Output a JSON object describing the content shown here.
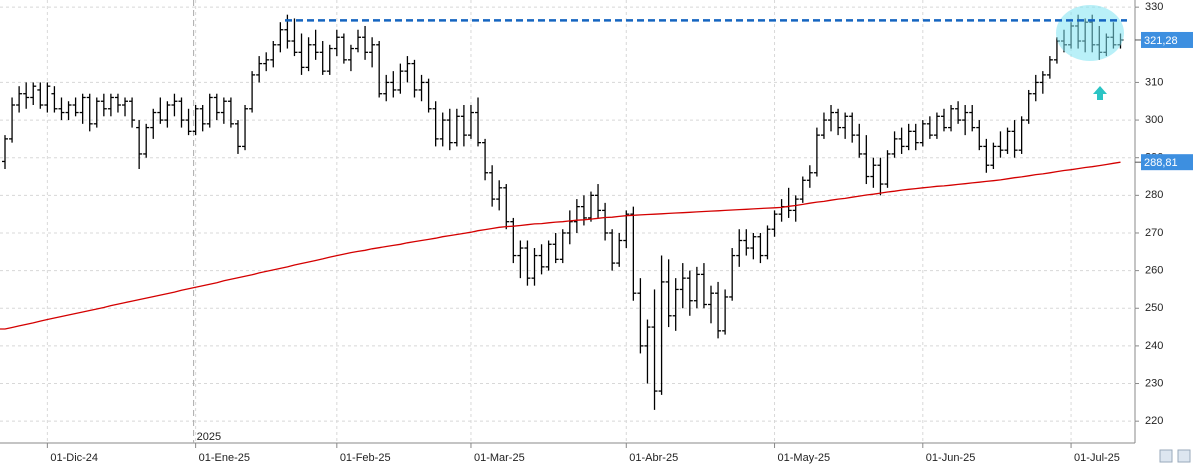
{
  "chart_data": {
    "type": "ohlc",
    "year_label": "2025",
    "ylim": [
      214.2,
      331.9
    ],
    "yticks": [
      220,
      230,
      240,
      250,
      260,
      270,
      280,
      290,
      300,
      310,
      330
    ],
    "grid": true,
    "bar_color": "#000000",
    "ma_color": "#d40000",
    "resistance": 326.5,
    "resistance_color": "#1565c0",
    "price_tag": {
      "value": 321.28,
      "label": "321,28"
    },
    "ma_tag": {
      "value": 288.81,
      "label": "288,81"
    },
    "tag_color": "#3d8fe0",
    "categories": [
      null,
      null,
      null,
      null,
      null,
      null,
      "01-Dic-24",
      null,
      null,
      null,
      null,
      null,
      null,
      null,
      null,
      null,
      null,
      null,
      null,
      null,
      null,
      null,
      null,
      null,
      null,
      null,
      null,
      "01-Ene-25",
      null,
      null,
      null,
      null,
      null,
      null,
      null,
      null,
      null,
      null,
      null,
      null,
      null,
      null,
      null,
      null,
      null,
      null,
      null,
      "01-Feb-25",
      null,
      null,
      null,
      null,
      null,
      null,
      null,
      null,
      null,
      null,
      null,
      null,
      null,
      null,
      null,
      null,
      null,
      null,
      "01-Mar-25",
      null,
      null,
      null,
      null,
      null,
      null,
      null,
      null,
      null,
      null,
      null,
      null,
      null,
      null,
      null,
      null,
      null,
      null,
      null,
      null,
      null,
      "01-Abr-25",
      null,
      null,
      null,
      null,
      null,
      null,
      null,
      null,
      null,
      null,
      null,
      null,
      null,
      null,
      null,
      null,
      null,
      null,
      null,
      null,
      "01-May-25",
      null,
      null,
      null,
      null,
      null,
      null,
      null,
      null,
      null,
      null,
      null,
      null,
      null,
      null,
      null,
      null,
      null,
      null,
      null,
      null,
      "01-Jun-25",
      null,
      null,
      null,
      null,
      null,
      null,
      null,
      null,
      null,
      null,
      null,
      null,
      null,
      null,
      null,
      null,
      null,
      null,
      null,
      null,
      "01-Jul-25",
      null,
      null,
      null,
      null,
      null,
      null,
      null
    ],
    "ohlc": [
      [
        289,
        296,
        287,
        295
      ],
      [
        295,
        306,
        294,
        304
      ],
      [
        304,
        309,
        302,
        307
      ],
      [
        307,
        310,
        303,
        306
      ],
      [
        306,
        310,
        304,
        309
      ],
      [
        308,
        310,
        303,
        304
      ],
      [
        304,
        310,
        302,
        309
      ],
      [
        307,
        309,
        302,
        303
      ],
      [
        303,
        306,
        300,
        302
      ],
      [
        302,
        305,
        300,
        304
      ],
      [
        304,
        306,
        301,
        302
      ],
      [
        302,
        307,
        299,
        306
      ],
      [
        306,
        307,
        297,
        299
      ],
      [
        299,
        306,
        298,
        305
      ],
      [
        305,
        307,
        301,
        303
      ],
      [
        303,
        307,
        301,
        306
      ],
      [
        306,
        307,
        302,
        304
      ],
      [
        304,
        306,
        301,
        305
      ],
      [
        305,
        306,
        298,
        300
      ],
      [
        298,
        300,
        287,
        291
      ],
      [
        291,
        299,
        290,
        298
      ],
      [
        298,
        303,
        295,
        302
      ],
      [
        302,
        306,
        299,
        300
      ],
      [
        300,
        305,
        298,
        304
      ],
      [
        304,
        307,
        301,
        305
      ],
      [
        305,
        306,
        298,
        300
      ],
      [
        300,
        303,
        296,
        297
      ],
      [
        297,
        304,
        296,
        303
      ],
      [
        303,
        304,
        297,
        299
      ],
      [
        299,
        307,
        298,
        306
      ],
      [
        306,
        307,
        300,
        302
      ],
      [
        302,
        306,
        299,
        305
      ],
      [
        305,
        306,
        298,
        299
      ],
      [
        299,
        300,
        291,
        293
      ],
      [
        293,
        304,
        292,
        303
      ],
      [
        303,
        313,
        302,
        312
      ],
      [
        312,
        317,
        310,
        315
      ],
      [
        315,
        318,
        313,
        316
      ],
      [
        316,
        321,
        314,
        320
      ],
      [
        320,
        326,
        318,
        324
      ],
      [
        324,
        328,
        319,
        321
      ],
      [
        321,
        327,
        317,
        318
      ],
      [
        318,
        323,
        312,
        314
      ],
      [
        314,
        322,
        313,
        320
      ],
      [
        320,
        324,
        316,
        318
      ],
      [
        318,
        321,
        312,
        313
      ],
      [
        313,
        320,
        312,
        319
      ],
      [
        319,
        324,
        317,
        322
      ],
      [
        322,
        323,
        315,
        316
      ],
      [
        316,
        320,
        313,
        319
      ],
      [
        319,
        324,
        318,
        322
      ],
      [
        322,
        325,
        316,
        318
      ],
      [
        318,
        322,
        314,
        320
      ],
      [
        320,
        321,
        306,
        307
      ],
      [
        307,
        312,
        305,
        310
      ],
      [
        310,
        313,
        306,
        308
      ],
      [
        308,
        315,
        307,
        313
      ],
      [
        313,
        317,
        310,
        315
      ],
      [
        315,
        316,
        306,
        308
      ],
      [
        308,
        312,
        305,
        310
      ],
      [
        310,
        311,
        302,
        303
      ],
      [
        303,
        305,
        293,
        295
      ],
      [
        295,
        302,
        293,
        300
      ],
      [
        300,
        303,
        292,
        294
      ],
      [
        294,
        303,
        293,
        301
      ],
      [
        301,
        304,
        293,
        296
      ],
      [
        296,
        304,
        295,
        302
      ],
      [
        302,
        306,
        293,
        294
      ],
      [
        294,
        295,
        284,
        286
      ],
      [
        286,
        288,
        277,
        279
      ],
      [
        279,
        284,
        276,
        282
      ],
      [
        282,
        283,
        271,
        273
      ],
      [
        273,
        274,
        262,
        264
      ],
      [
        264,
        268,
        258,
        266
      ],
      [
        266,
        268,
        256,
        258
      ],
      [
        258,
        266,
        256,
        264
      ],
      [
        264,
        267,
        259,
        261
      ],
      [
        261,
        268,
        260,
        267
      ],
      [
        267,
        270,
        262,
        263
      ],
      [
        263,
        271,
        262,
        270
      ],
      [
        270,
        276,
        267,
        273
      ],
      [
        273,
        279,
        270,
        277
      ],
      [
        277,
        280,
        272,
        274
      ],
      [
        274,
        281,
        273,
        280
      ],
      [
        280,
        283,
        274,
        276
      ],
      [
        276,
        278,
        268,
        270
      ],
      [
        270,
        271,
        260,
        262
      ],
      [
        262,
        270,
        261,
        268
      ],
      [
        268,
        276,
        266,
        275
      ],
      [
        275,
        277,
        252,
        254
      ],
      [
        254,
        258,
        238,
        240
      ],
      [
        240,
        247,
        230,
        245
      ],
      [
        245,
        255,
        223,
        228
      ],
      [
        228,
        264,
        227,
        257
      ],
      [
        257,
        263,
        245,
        248
      ],
      [
        248,
        258,
        244,
        255
      ],
      [
        255,
        262,
        250,
        258
      ],
      [
        258,
        260,
        248,
        252
      ],
      [
        252,
        261,
        250,
        259
      ],
      [
        259,
        262,
        250,
        251
      ],
      [
        251,
        256,
        246,
        254
      ],
      [
        254,
        257,
        242,
        244
      ],
      [
        244,
        255,
        243,
        253
      ],
      [
        253,
        266,
        252,
        264
      ],
      [
        264,
        271,
        261,
        268
      ],
      [
        268,
        271,
        264,
        266
      ],
      [
        266,
        270,
        263,
        269
      ],
      [
        269,
        270,
        262,
        264
      ],
      [
        264,
        272,
        263,
        271
      ],
      [
        271,
        276,
        269,
        275
      ],
      [
        275,
        279,
        273,
        277
      ],
      [
        277,
        282,
        274,
        276
      ],
      [
        276,
        280,
        273,
        279
      ],
      [
        279,
        285,
        278,
        284
      ],
      [
        284,
        288,
        282,
        286
      ],
      [
        286,
        298,
        285,
        296
      ],
      [
        296,
        302,
        295,
        300
      ],
      [
        300,
        304,
        297,
        302
      ],
      [
        302,
        303,
        296,
        298
      ],
      [
        298,
        302,
        295,
        301
      ],
      [
        301,
        302,
        294,
        296
      ],
      [
        296,
        299,
        290,
        291
      ],
      [
        291,
        296,
        283,
        285
      ],
      [
        285,
        290,
        282,
        288
      ],
      [
        288,
        290,
        280,
        283
      ],
      [
        283,
        292,
        282,
        291
      ],
      [
        291,
        297,
        290,
        295
      ],
      [
        295,
        298,
        291,
        293
      ],
      [
        293,
        299,
        292,
        297
      ],
      [
        297,
        299,
        292,
        294
      ],
      [
        294,
        300,
        293,
        299
      ],
      [
        299,
        301,
        295,
        296
      ],
      [
        296,
        302,
        295,
        301
      ],
      [
        301,
        303,
        297,
        298
      ],
      [
        298,
        304,
        297,
        303
      ],
      [
        303,
        305,
        299,
        300
      ],
      [
        300,
        304,
        296,
        302
      ],
      [
        302,
        304,
        297,
        298
      ],
      [
        298,
        300,
        292,
        293
      ],
      [
        293,
        295,
        286,
        288
      ],
      [
        288,
        294,
        287,
        293
      ],
      [
        293,
        297,
        290,
        292
      ],
      [
        292,
        298,
        291,
        297
      ],
      [
        297,
        300,
        290,
        292
      ],
      [
        292,
        301,
        291,
        300
      ],
      [
        300,
        308,
        299,
        307
      ],
      [
        307,
        312,
        305,
        310
      ],
      [
        310,
        313,
        307,
        312
      ],
      [
        312,
        317,
        311,
        316
      ],
      [
        316,
        322,
        315,
        321
      ],
      [
        321,
        324,
        318,
        320
      ],
      [
        320,
        326,
        319,
        325
      ],
      [
        325,
        328,
        319,
        321
      ],
      [
        321,
        327,
        318,
        326
      ],
      [
        326,
        328,
        318,
        320
      ],
      [
        320,
        325,
        316,
        318
      ],
      [
        318,
        323,
        317,
        322
      ],
      [
        322,
        326,
        319,
        320
      ],
      [
        320,
        323,
        319,
        321.28
      ]
    ],
    "ma": [
      244.5,
      244.9,
      245.3,
      245.7,
      246.1,
      246.6,
      247.0,
      247.4,
      247.8,
      248.2,
      248.6,
      249.0,
      249.4,
      249.8,
      250.2,
      250.7,
      251.1,
      251.5,
      251.9,
      252.3,
      252.7,
      253.1,
      253.5,
      253.9,
      254.3,
      254.8,
      255.2,
      255.6,
      256.0,
      256.4,
      256.8,
      257.3,
      257.7,
      258.1,
      258.5,
      258.9,
      259.4,
      259.8,
      260.2,
      260.6,
      261.0,
      261.5,
      261.9,
      262.3,
      262.7,
      263.1,
      263.6,
      264.0,
      264.4,
      264.8,
      265.1,
      265.4,
      265.8,
      266.1,
      266.4,
      266.7,
      267.0,
      267.4,
      267.7,
      268.0,
      268.3,
      268.6,
      269.0,
      269.3,
      269.6,
      269.9,
      270.2,
      270.6,
      270.9,
      271.2,
      271.5,
      271.7,
      271.8,
      272.0,
      272.2,
      272.4,
      272.5,
      272.7,
      272.9,
      273.0,
      273.2,
      273.4,
      273.5,
      273.7,
      273.9,
      274.1,
      274.2,
      274.4,
      274.6,
      274.7,
      274.8,
      274.9,
      275.0,
      275.1,
      275.2,
      275.3,
      275.4,
      275.5,
      275.6,
      275.7,
      275.8,
      275.9,
      276.0,
      276.1,
      276.2,
      276.3,
      276.4,
      276.5,
      276.6,
      276.7,
      276.8,
      277.1,
      277.3,
      277.6,
      277.9,
      278.2,
      278.4,
      278.7,
      279.0,
      279.2,
      279.5,
      279.8,
      280.1,
      280.3,
      280.6,
      280.9,
      281.1,
      281.4,
      281.6,
      281.8,
      282.0,
      282.2,
      282.4,
      282.5,
      282.7,
      282.9,
      283.1,
      283.3,
      283.5,
      283.7,
      283.9,
      284.1,
      284.4,
      284.7,
      284.9,
      285.2,
      285.5,
      285.7,
      286.0,
      286.3,
      286.6,
      286.8,
      287.1,
      287.4,
      287.6,
      287.9,
      288.2,
      288.5,
      288.81
    ]
  }
}
